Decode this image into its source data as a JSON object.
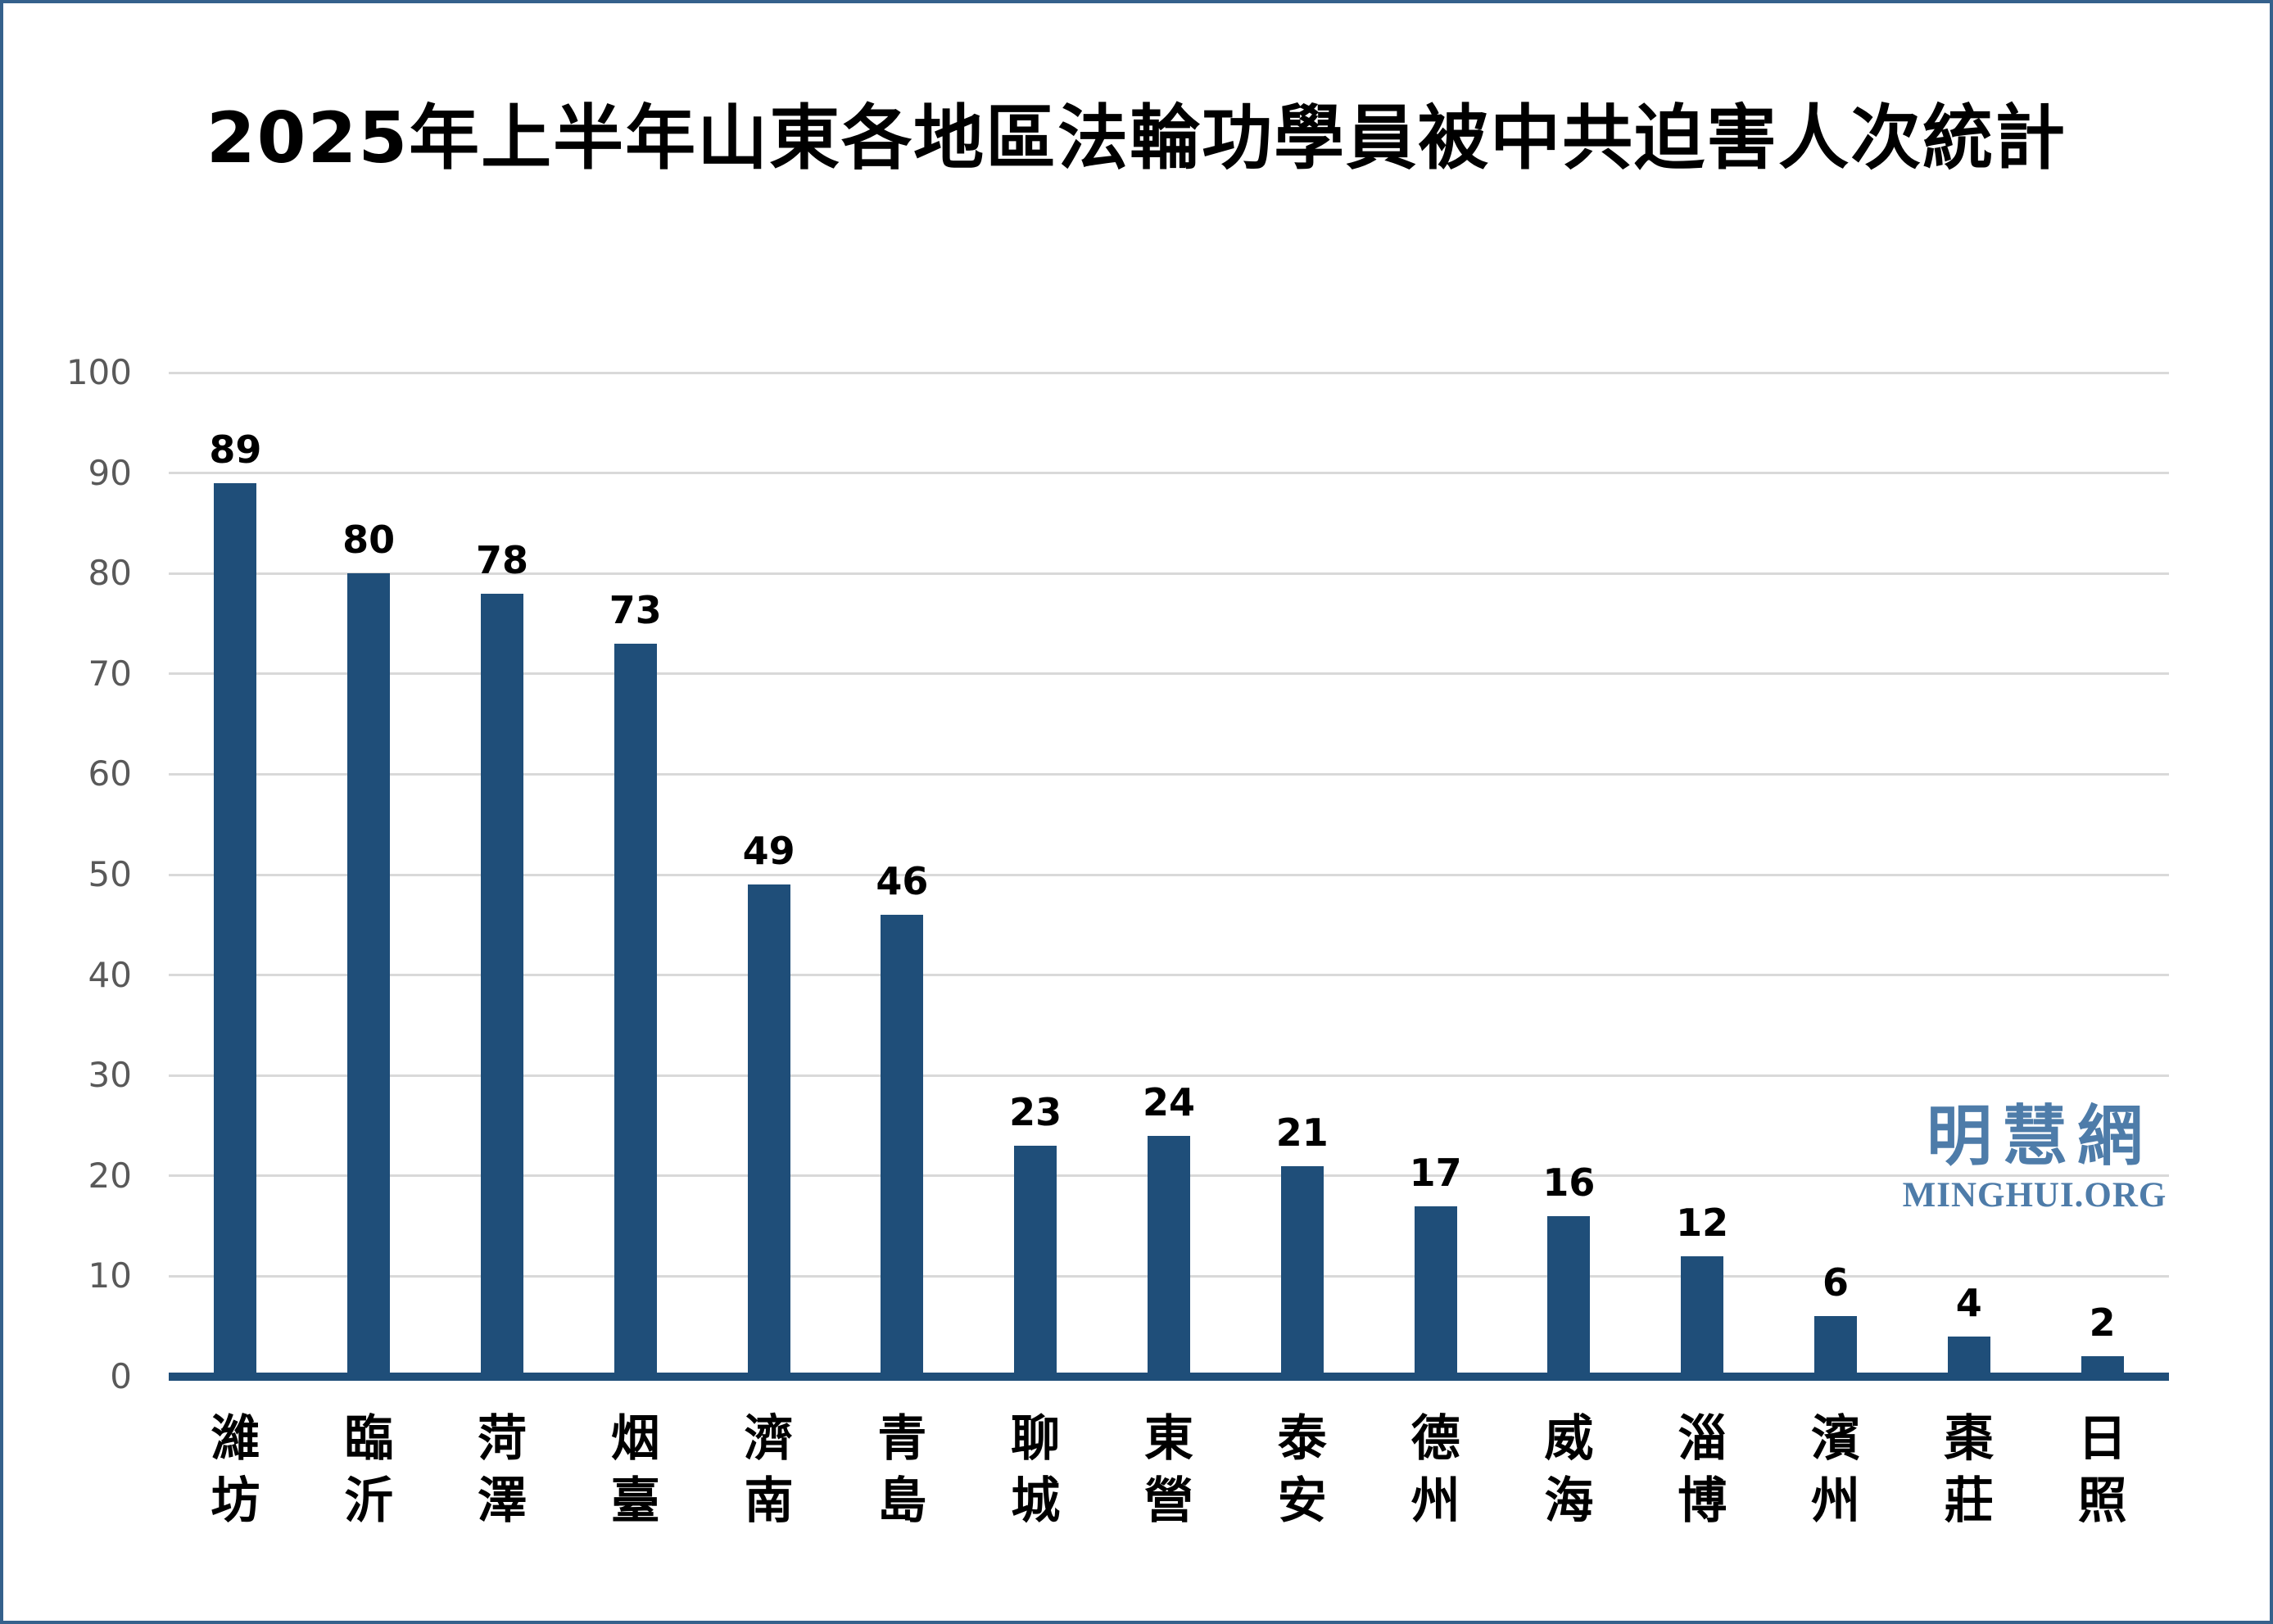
{
  "title_text": "2025年上半年山東各地區法輪功學員被中共迫害人次統計",
  "watermark": {
    "cjk": "明慧網",
    "latin": "MINGHUI.ORG"
  },
  "colors": {
    "bar": "#1F4E79",
    "axis_line": "#1F4E79",
    "gridline": "#D9D9D9",
    "tick_label": "#595959",
    "value_label": "#000000",
    "category_label": "#000000",
    "logo": "#4E7CA9",
    "border": "#35618C",
    "background": "#FFFFFF"
  },
  "chart_data": {
    "type": "bar",
    "title": "2025年上半年山東各地區法輪功學員被中共迫害人次統計",
    "categories": [
      "濰坊",
      "臨沂",
      "菏澤",
      "烟臺",
      "濟南",
      "青島",
      "聊城",
      "東營",
      "泰安",
      "德州",
      "威海",
      "淄博",
      "濱州",
      "棗莊",
      "日照"
    ],
    "values": [
      89,
      80,
      78,
      73,
      49,
      46,
      23,
      24,
      21,
      17,
      16,
      12,
      6,
      4,
      2
    ],
    "value_labels_shown": true,
    "xlabel": "",
    "ylabel": "",
    "ylim": [
      0,
      100
    ],
    "yticks": [
      0,
      10,
      20,
      30,
      40,
      50,
      60,
      70,
      80,
      90,
      100
    ],
    "grid": true,
    "grid_orientation": "horizontal",
    "legend": "none",
    "category_label_orientation": "vertical-stacked"
  }
}
